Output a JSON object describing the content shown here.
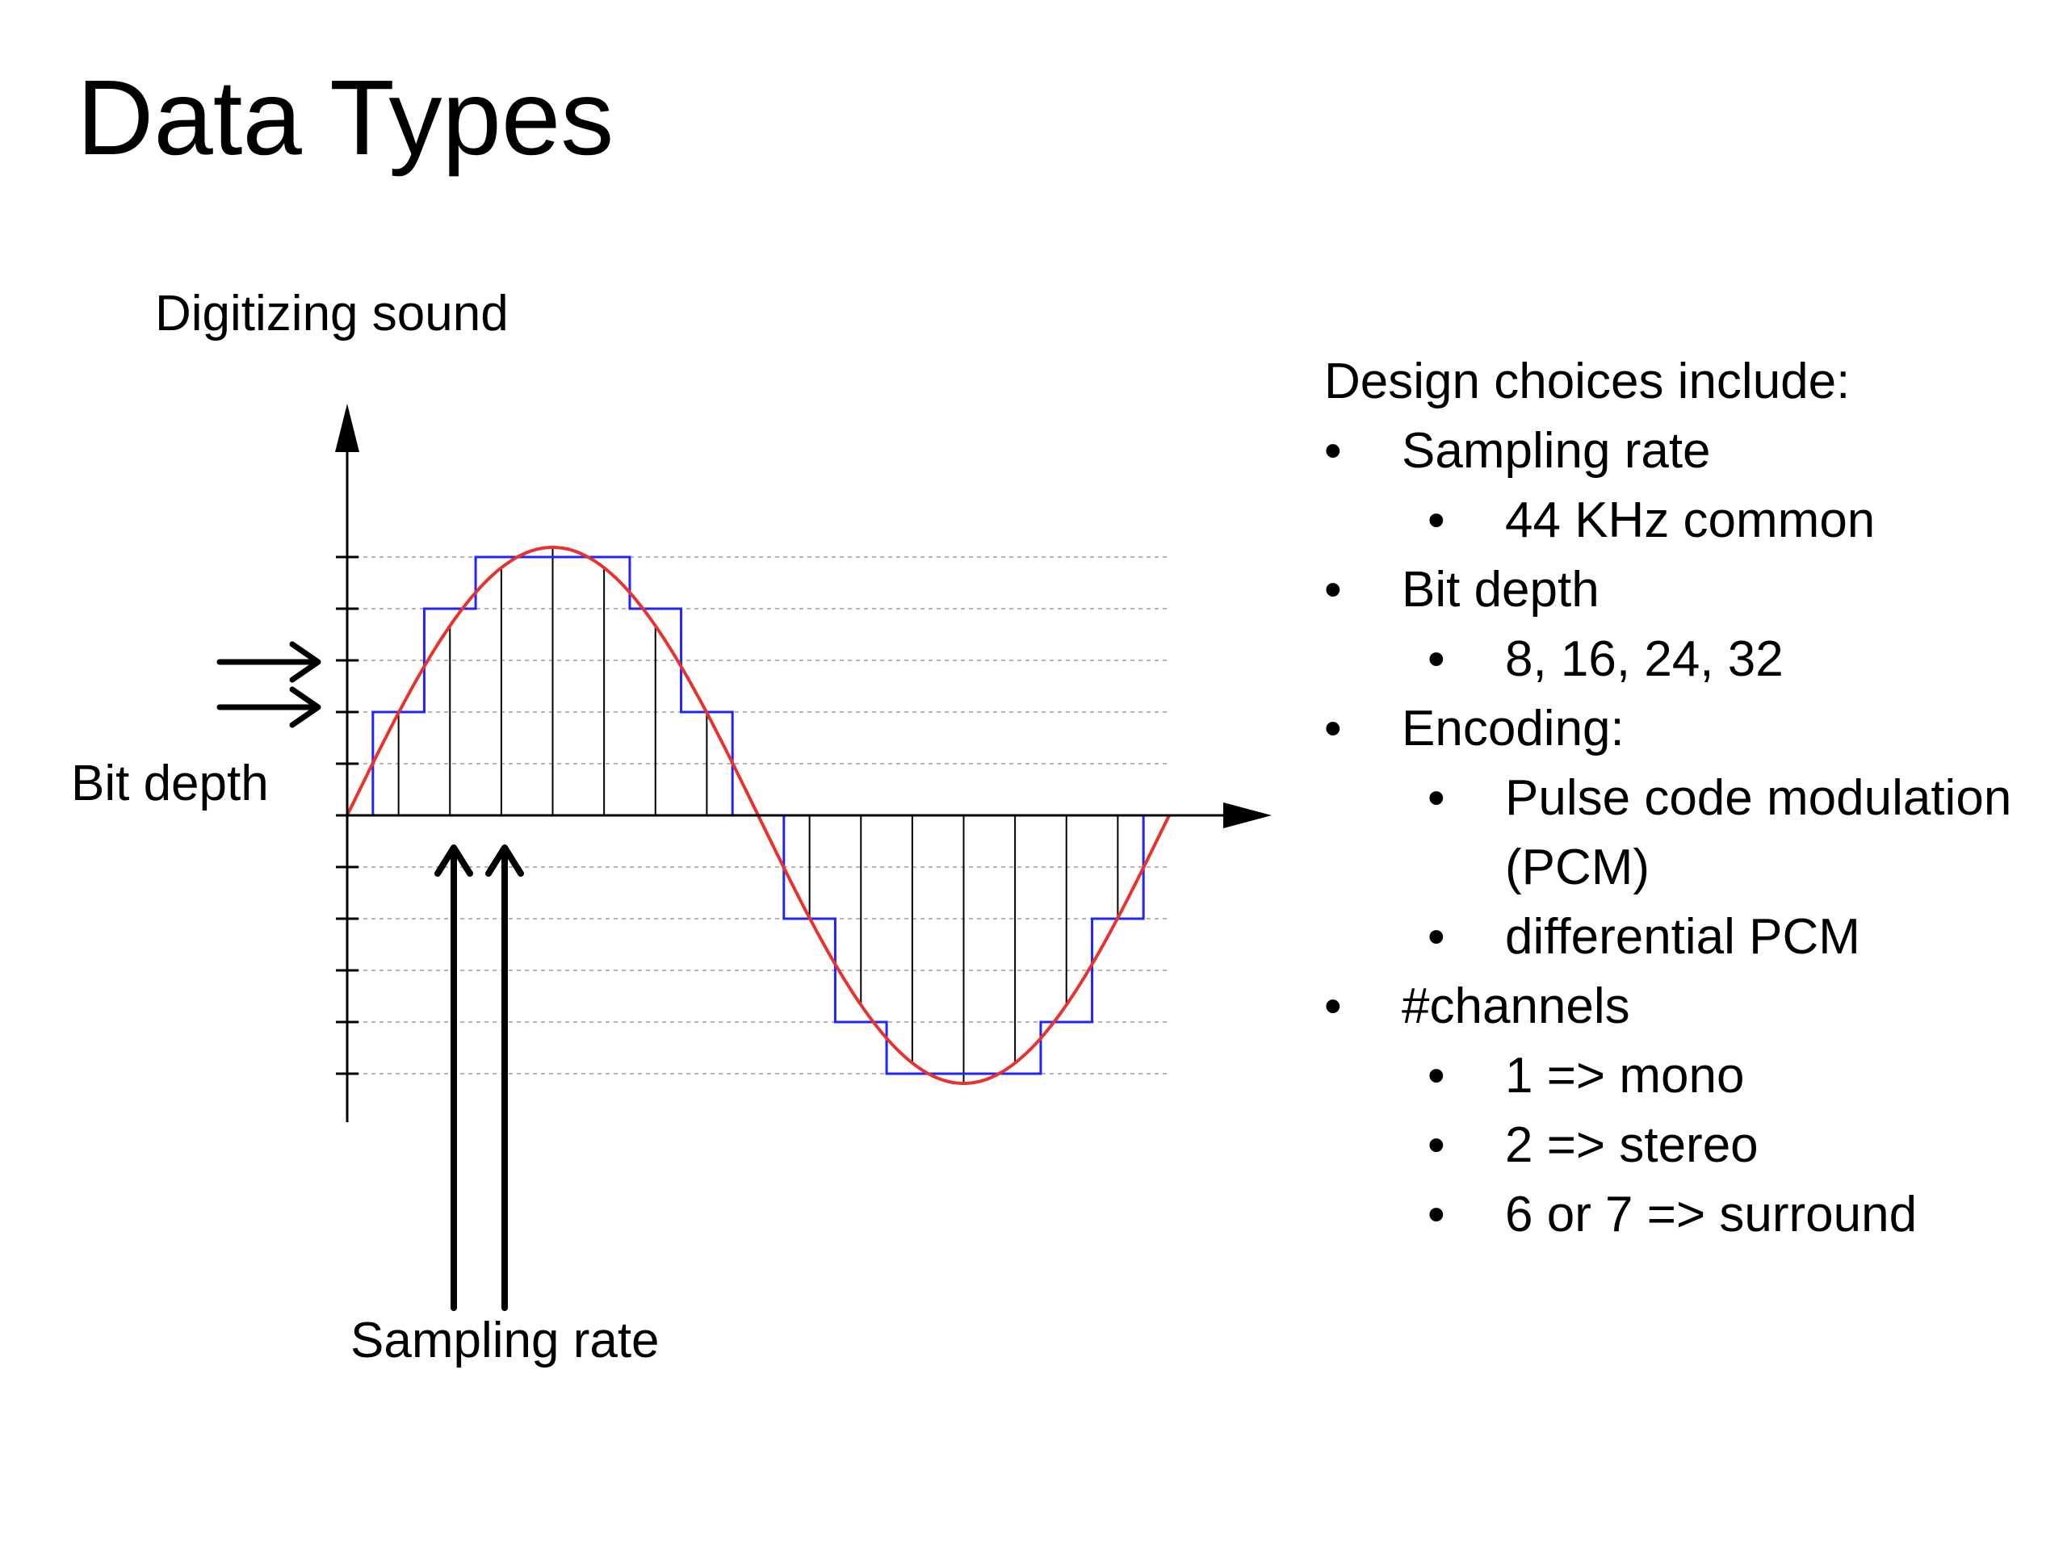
{
  "title": "Data Types",
  "diagram": {
    "caption": "Digitizing sound",
    "bit_depth_label": "Bit depth",
    "sampling_rate_label": "Sampling rate",
    "colors": {
      "analog_signal": "#e8322e",
      "quantized_signal": "#2323ff",
      "sample_lines": "#000000",
      "grid": "#b4b4b4",
      "axes": "#000000"
    },
    "signal": {
      "waveform": "sine",
      "cycles": 1,
      "samples": 16,
      "quantization_levels": 5
    }
  },
  "choices": {
    "heading": "Design choices include:",
    "items": [
      {
        "label": "Sampling rate",
        "sub": [
          "44 KHz common"
        ]
      },
      {
        "label": "Bit depth",
        "sub": [
          "8, 16, 24, 32"
        ]
      },
      {
        "label": "Encoding:",
        "sub": [
          "Pulse code modulation (PCM)",
          "differential PCM"
        ]
      },
      {
        "label": "#channels",
        "sub": [
          "1 => mono",
          "2 => stereo",
          "6 or 7 => surround"
        ]
      }
    ]
  }
}
